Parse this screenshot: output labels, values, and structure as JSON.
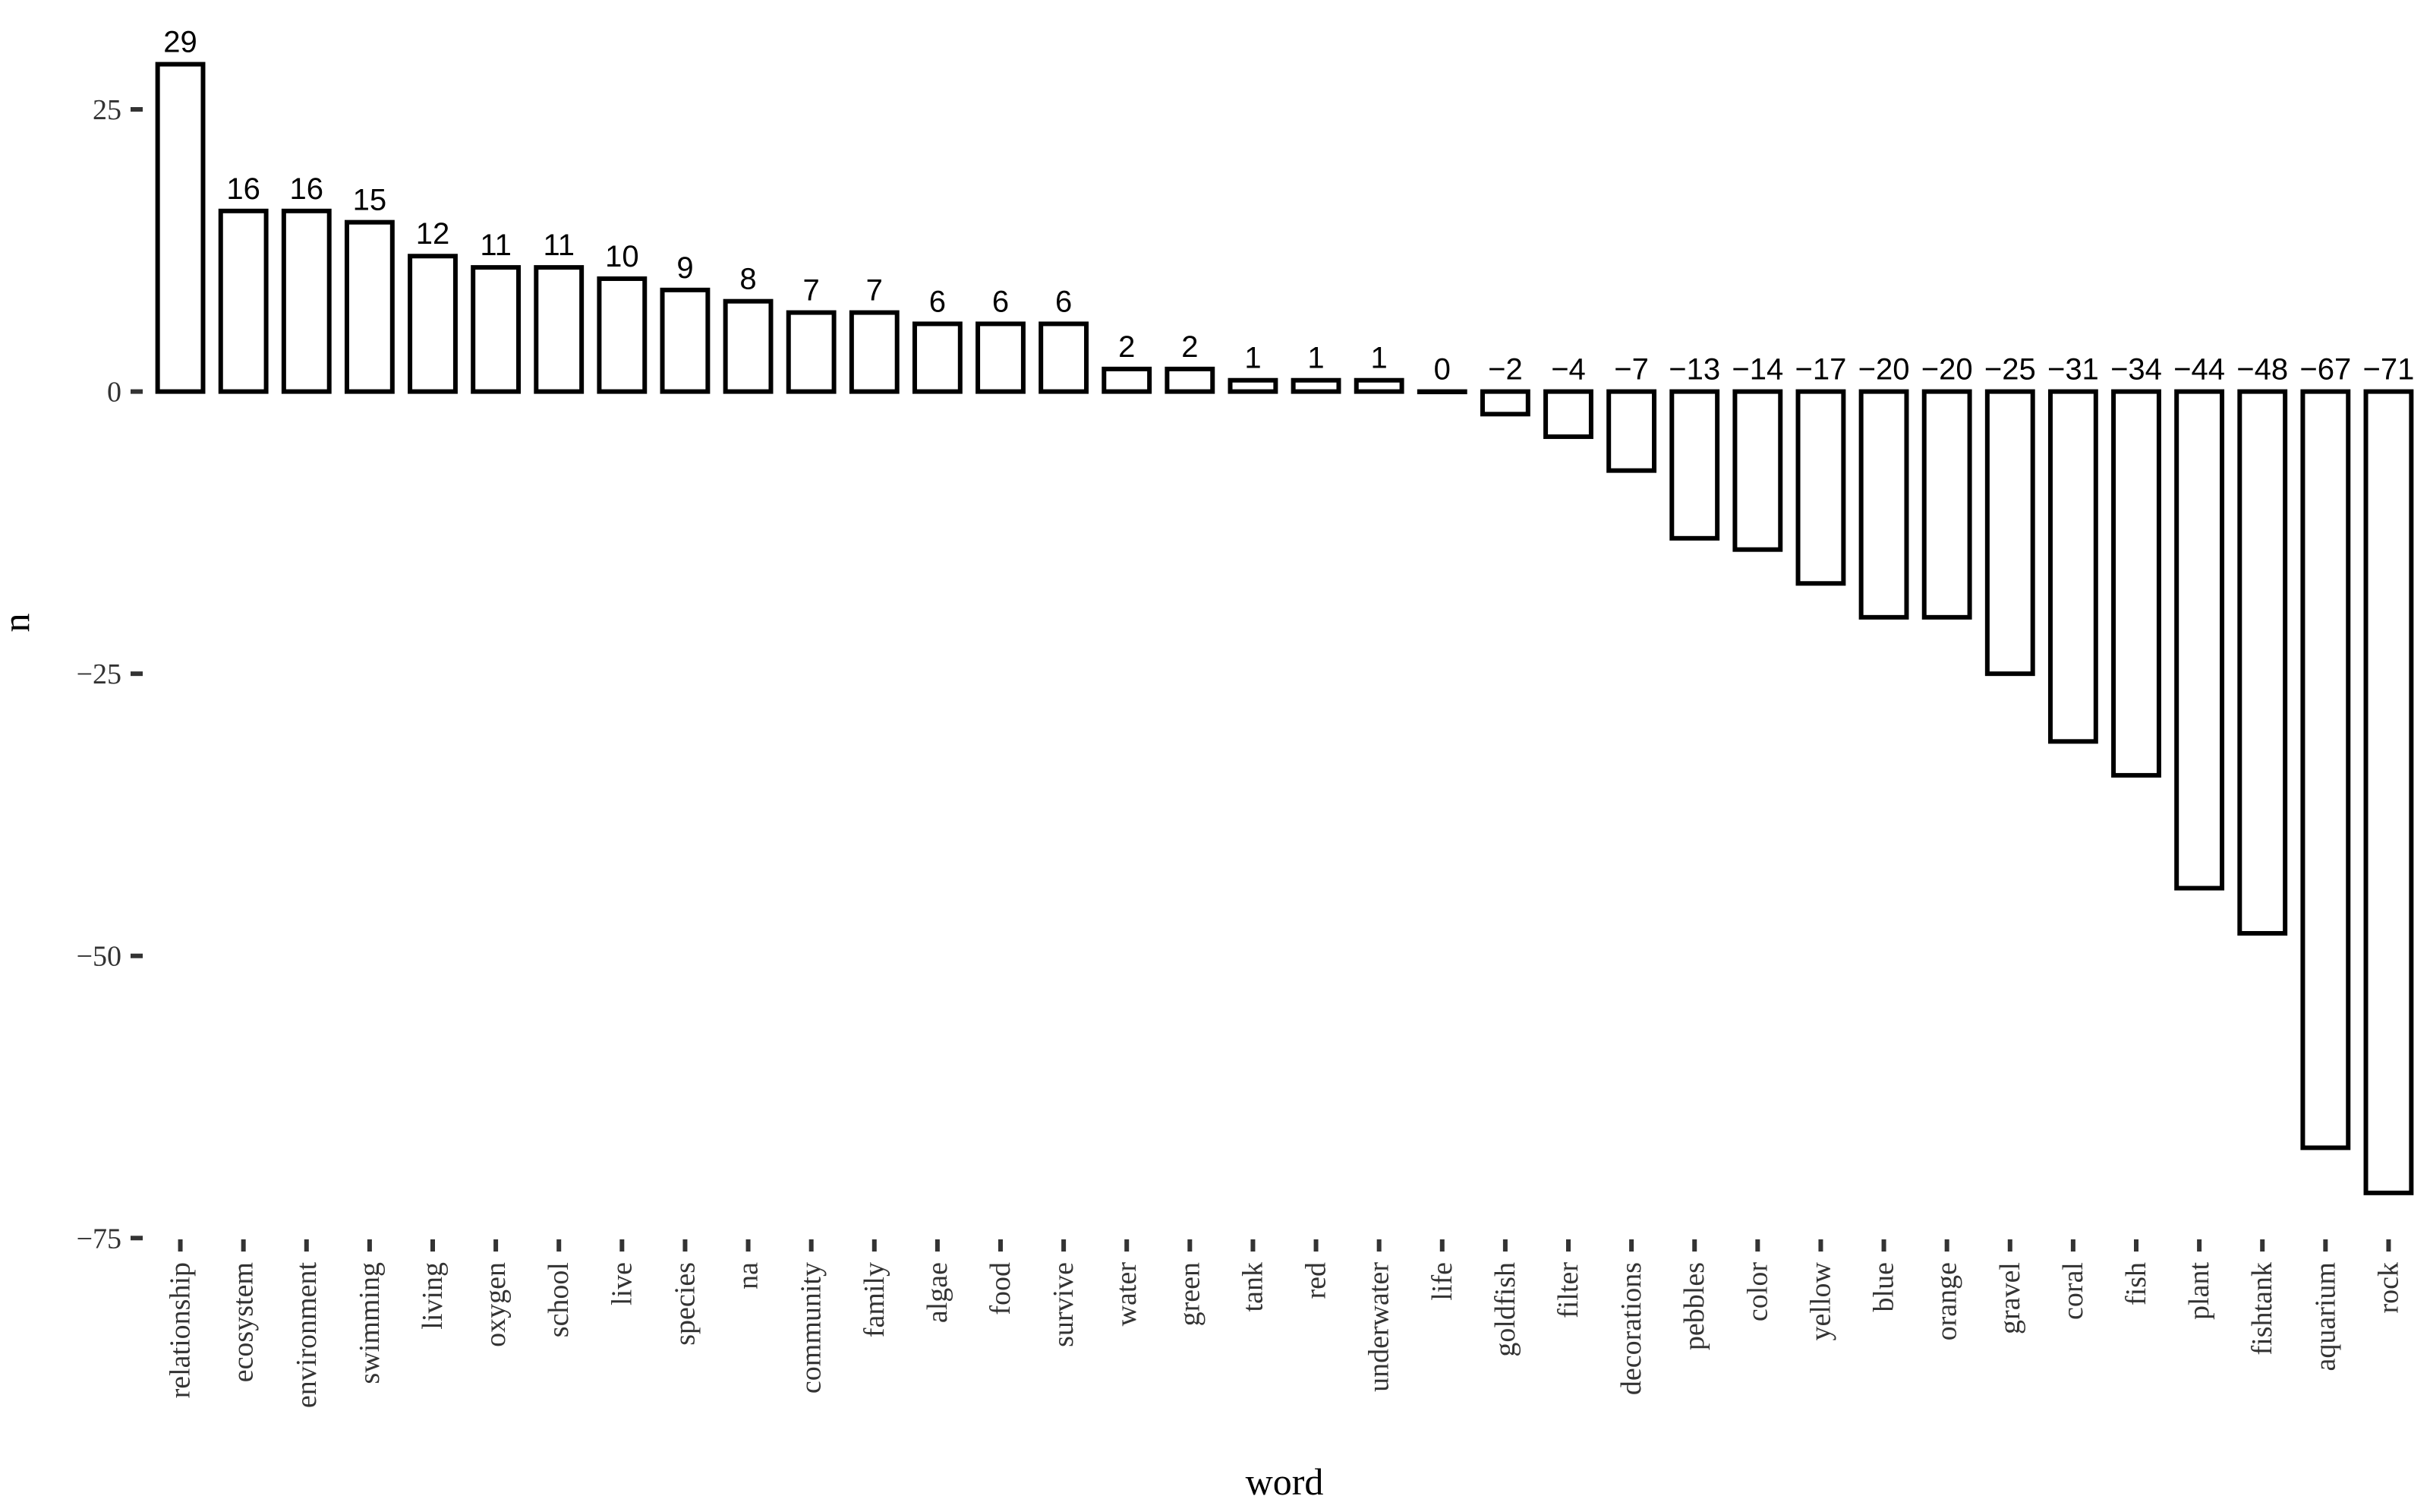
{
  "chart_data": {
    "type": "bar",
    "xlabel": "word",
    "ylabel": "n",
    "ylim": [
      -77,
      32
    ],
    "yticks": [
      -75,
      -50,
      -25,
      0,
      25
    ],
    "ytick_labels": [
      "−75",
      "−50",
      "−25",
      "0",
      "25"
    ],
    "grid": false,
    "legend": "none",
    "categories": [
      "relationship",
      "ecosystem",
      "environment",
      "swimming",
      "living",
      "oxygen",
      "school",
      "live",
      "species",
      "na",
      "community",
      "family",
      "algae",
      "food",
      "survive",
      "water",
      "green",
      "tank",
      "red",
      "underwater",
      "life",
      "goldfish",
      "filter",
      "decorations",
      "pebbles",
      "color",
      "yellow",
      "blue",
      "orange",
      "gravel",
      "coral",
      "fish",
      "plant",
      "fishtank",
      "aquarium",
      "rock"
    ],
    "values": [
      29,
      16,
      16,
      15,
      12,
      11,
      11,
      10,
      9,
      8,
      7,
      7,
      6,
      6,
      6,
      2,
      2,
      1,
      1,
      1,
      0,
      -2,
      -4,
      -7,
      -13,
      -14,
      -17,
      -20,
      -20,
      -25,
      -31,
      -34,
      -44,
      -48,
      -67,
      -71
    ],
    "data_labels": [
      "29",
      "16",
      "16",
      "15",
      "12",
      "11",
      "11",
      "10",
      "9",
      "8",
      "7",
      "7",
      "6",
      "6",
      "6",
      "2",
      "2",
      "1",
      "1",
      "1",
      "0",
      "−2",
      "−4",
      "−7",
      "−13",
      "−14",
      "−17",
      "−20",
      "−20",
      "−25",
      "−31",
      "−34",
      "−44",
      "−48",
      "−67",
      "−71"
    ],
    "colors": {
      "bar_fill": "#ffffff",
      "bar_stroke": "#000000",
      "axis_text": "#333333"
    }
  }
}
